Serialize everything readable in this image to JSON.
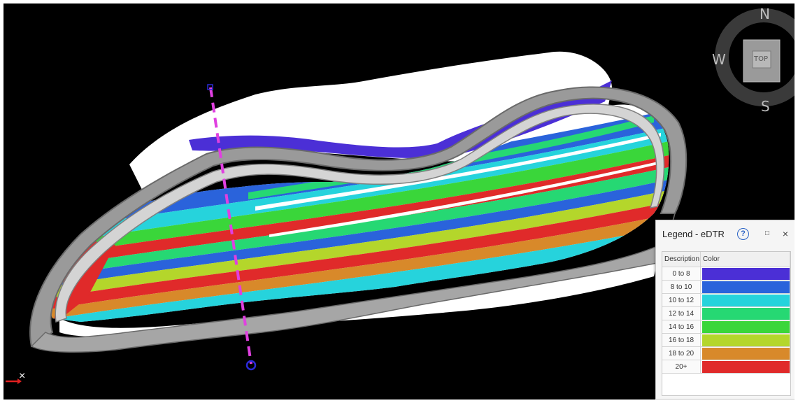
{
  "viewcube": {
    "north": "N",
    "south": "S",
    "west": "W",
    "top_label": "TOP"
  },
  "legend": {
    "title": "Legend - eDTR",
    "help_label": "?",
    "maximize_label": "□",
    "close_label": "×",
    "columns": [
      "Description",
      "Color"
    ],
    "rows": [
      {
        "description": "0 to 8",
        "color": "#4b2fd6"
      },
      {
        "description": "8 to 10",
        "color": "#2a63db"
      },
      {
        "description": "10 to 12",
        "color": "#26d3dc"
      },
      {
        "description": "12 to 14",
        "color": "#26d873"
      },
      {
        "description": "14 to 16",
        "color": "#3ad63a"
      },
      {
        "description": "16 to 18",
        "color": "#b4d62b"
      },
      {
        "description": "18 to 20",
        "color": "#d8892a"
      },
      {
        "description": "20+",
        "color": "#e02a2a"
      }
    ]
  },
  "axis_indicator": {
    "label": "×",
    "color": "#e02020"
  },
  "section_line": {
    "color": "#e040e0",
    "end_marker_color": "#2a2ad8"
  }
}
